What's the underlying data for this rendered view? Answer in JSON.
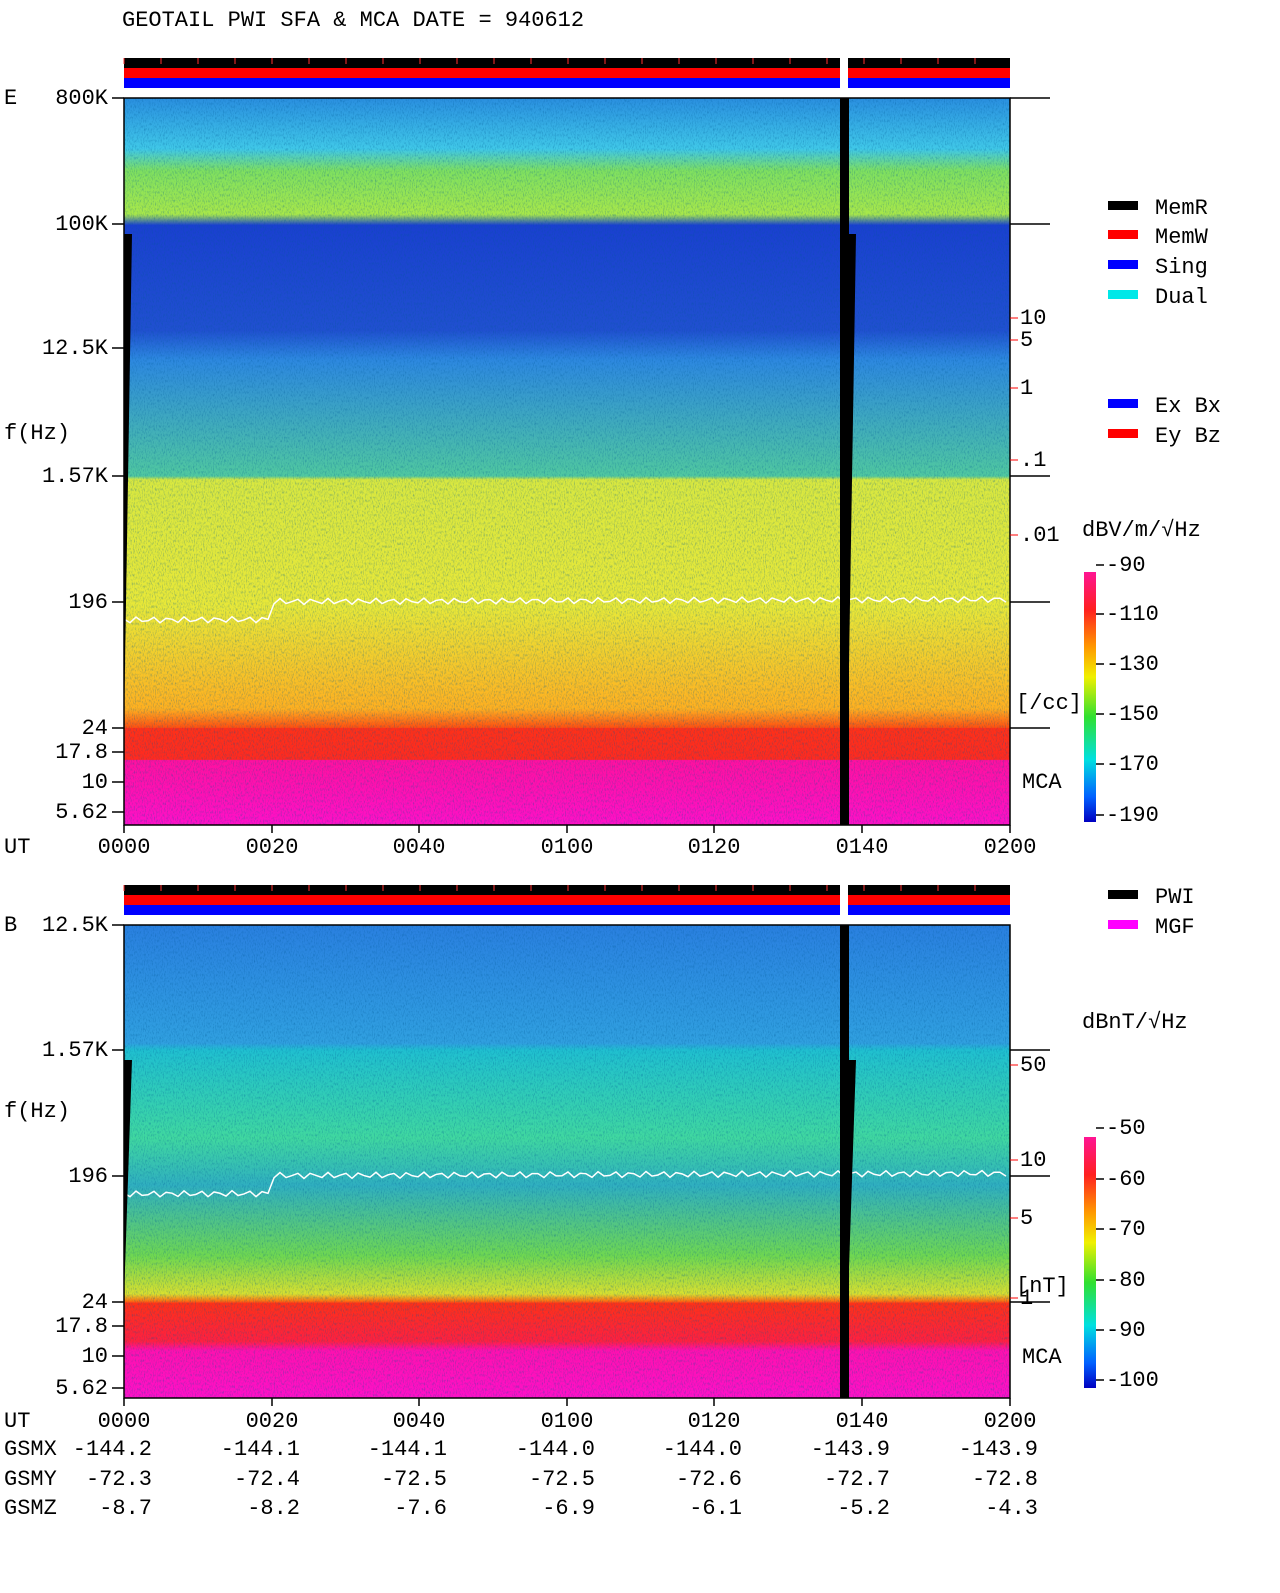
{
  "title": "GEOTAIL  PWI SFA & MCA   DATE = 940612",
  "panels": [
    {
      "label": "E",
      "y_label": "f(Hz)",
      "freq_ticks": [
        "800K",
        "100K",
        "12.5K",
        "1.57K",
        "196",
        "24",
        "17.8",
        "10",
        "5.62"
      ],
      "density_ticks": [
        "10",
        "5",
        "1",
        ".1",
        ".01"
      ],
      "density_unit": "[/cc]",
      "mca": "MCA",
      "ut_label": "UT",
      "time_ticks": [
        "0000",
        "0020",
        "0040",
        "0100",
        "0120",
        "0140",
        "0200"
      ],
      "colorbar_title": "dBV/m/√Hz",
      "colorbar_ticks": [
        "-90",
        "-110",
        "-130",
        "-150",
        "-170",
        "-190"
      ]
    },
    {
      "label": "B",
      "y_label": "f(Hz)",
      "freq_ticks": [
        "12.5K",
        "1.57K",
        "196",
        "24",
        "17.8",
        "10",
        "5.62"
      ],
      "density_ticks": [
        "50",
        "10",
        "5",
        "1"
      ],
      "density_unit": "[nT]",
      "mca": "MCA",
      "ut_label": "UT",
      "time_ticks": [
        "0000",
        "0020",
        "0040",
        "0100",
        "0120",
        "0140",
        "0200"
      ],
      "colorbar_title": "dBnT/√Hz",
      "colorbar_ticks": [
        "-50",
        "-60",
        "-70",
        "-80",
        "-90",
        "-100"
      ]
    }
  ],
  "legend": {
    "memory": [
      "MemR",
      "MemW",
      "Sing",
      "Dual"
    ],
    "components": [
      "Ex Bx",
      "Ey Bz"
    ],
    "sources": [
      "PWI",
      "MGF"
    ]
  },
  "orbit": [
    {
      "label": "GSMX",
      "values": [
        "-144.2",
        "-144.1",
        "-144.1",
        "-144.0",
        "-144.0",
        "-143.9",
        "-143.9"
      ]
    },
    {
      "label": "GSMY",
      "values": [
        "-72.3",
        "-72.4",
        "-72.5",
        "-72.5",
        "-72.6",
        "-72.7",
        "-72.8"
      ]
    },
    {
      "label": "GSMZ",
      "values": [
        "-8.7",
        "-8.2",
        "-7.6",
        "-6.9",
        "-6.1",
        "-5.2",
        "-4.3"
      ]
    }
  ]
}
